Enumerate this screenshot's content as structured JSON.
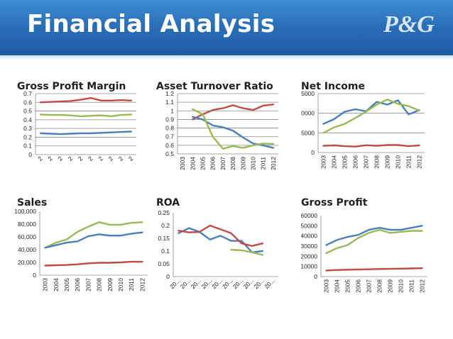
{
  "slide": {
    "title": "Financial Analysis",
    "logo": "P&G"
  },
  "colors": {
    "blue": "#4a7ebb",
    "red": "#be4b48",
    "green": "#98b954",
    "grid": "#868686",
    "axis": "#868686",
    "tick_text": "#1f1f1f"
  },
  "chart_data": [
    {
      "id": "gpm",
      "type": "line",
      "title": "Gross Profit Margin",
      "categories": [
        "2",
        "2",
        "2",
        "2",
        "2",
        "2",
        "2",
        "2",
        "2",
        "2"
      ],
      "y_ticks": [
        "0",
        "0.1",
        "0.2",
        "0.3",
        "0.4",
        "0.5",
        "0.6",
        "0.7"
      ],
      "ylim": [
        0,
        0.7
      ],
      "grid": true,
      "series": [
        {
          "color": "red",
          "values": [
            0.6,
            0.605,
            0.61,
            0.615,
            0.63,
            0.65,
            0.62,
            0.62,
            0.625,
            0.62
          ]
        },
        {
          "color": "green",
          "values": [
            0.46,
            0.455,
            0.455,
            0.45,
            0.44,
            0.445,
            0.45,
            0.44,
            0.455,
            0.46
          ]
        },
        {
          "color": "blue",
          "values": [
            0.245,
            0.24,
            0.235,
            0.24,
            0.245,
            0.245,
            0.25,
            0.255,
            0.26,
            0.265
          ]
        }
      ]
    },
    {
      "id": "atr",
      "type": "line",
      "title": "Asset Turnover Ratio",
      "categories": [
        "2003",
        "2004",
        "2005",
        "2006",
        "2007",
        "2008",
        "2009",
        "2010",
        "2011",
        "2012"
      ],
      "y_ticks": [
        "0.5",
        "0.6",
        "0.7",
        "0.8",
        "0.9",
        "1",
        "1.1",
        "1.2"
      ],
      "ylim": [
        0.5,
        1.2
      ],
      "grid": true,
      "series": [
        {
          "color": "red",
          "values": [
            null,
            0.9,
            0.96,
            1.01,
            1.03,
            1.065,
            1.03,
            1.01,
            1.06,
            1.075
          ]
        },
        {
          "color": "blue",
          "values": [
            null,
            0.93,
            0.9,
            0.83,
            0.81,
            0.77,
            0.69,
            0.62,
            0.6,
            0.57
          ]
        },
        {
          "color": "green",
          "values": [
            null,
            1.02,
            0.96,
            0.7,
            0.56,
            0.59,
            0.57,
            0.6,
            0.62,
            0.615
          ]
        }
      ]
    },
    {
      "id": "ni",
      "type": "line",
      "title": "Net Income",
      "categories": [
        "2003",
        "2004",
        "2005",
        "2006",
        "2007",
        "2008",
        "2009",
        "2010",
        "2011",
        "2012"
      ],
      "y_ticks": [
        "0",
        "5000",
        "10000",
        "15000"
      ],
      "ylim": [
        0,
        15000
      ],
      "grid": true,
      "series": [
        {
          "color": "blue",
          "values": [
            7300,
            8500,
            10400,
            11000,
            10500,
            12900,
            12200,
            13300,
            9700,
            10800
          ]
        },
        {
          "color": "green",
          "values": [
            5000,
            6400,
            7300,
            8800,
            10400,
            12200,
            13500,
            12400,
            11800,
            10700
          ]
        },
        {
          "color": "red",
          "values": [
            1700,
            1800,
            1600,
            1500,
            1850,
            1700,
            1900,
            1900,
            1600,
            1800
          ]
        }
      ]
    },
    {
      "id": "sales",
      "type": "line",
      "title": "Sales",
      "categories": [
        "2003",
        "2004",
        "2005",
        "2006",
        "2007",
        "2008",
        "2009",
        "2010",
        "2011",
        "2012"
      ],
      "y_ticks": [
        "0",
        "20,000",
        "40,000",
        "60,000",
        "80,000",
        "100,000"
      ],
      "ylim": [
        0,
        100000
      ],
      "grid": false,
      "series": [
        {
          "color": "green",
          "values": [
            43000,
            51000,
            56000,
            68000,
            76000,
            83000,
            79000,
            79000,
            82000,
            83000
          ]
        },
        {
          "color": "blue",
          "values": [
            43000,
            47000,
            51000,
            53000,
            61000,
            64000,
            62000,
            62000,
            65000,
            67000
          ]
        },
        {
          "color": "red",
          "values": [
            15000,
            15500,
            16000,
            17000,
            18500,
            19500,
            19500,
            20000,
            21000,
            21000
          ]
        }
      ]
    },
    {
      "id": "roa",
      "type": "line",
      "title": "ROA",
      "categories": [
        "20...",
        "20...",
        "20...",
        "20...",
        "20...",
        "20...",
        "20...",
        "20...",
        "20...",
        "20..."
      ],
      "y_ticks": [
        "0",
        "0.05",
        "0.1",
        "0.15",
        "0.2",
        "0.25"
      ],
      "ylim": [
        0,
        0.25
      ],
      "grid": false,
      "series": [
        {
          "color": "blue",
          "values": [
            0.17,
            0.19,
            0.175,
            0.145,
            0.16,
            0.14,
            0.14,
            0.095,
            0.1,
            null
          ]
        },
        {
          "color": "red",
          "values": [
            0.18,
            0.173,
            0.175,
            0.2,
            0.185,
            0.17,
            0.13,
            0.12,
            0.13,
            null
          ]
        },
        {
          "color": "green",
          "values": [
            null,
            null,
            null,
            null,
            null,
            0.105,
            0.103,
            0.095,
            0.085,
            null
          ]
        }
      ]
    },
    {
      "id": "gp",
      "type": "line",
      "title": "Gross Profit",
      "categories": [
        "2003",
        "2004",
        "2005",
        "2006",
        "2007",
        "2008",
        "2009",
        "2010",
        "2011",
        "2012"
      ],
      "y_ticks": [
        "0",
        "10000",
        "20000",
        "30000",
        "40000",
        "50000",
        "60000"
      ],
      "ylim": [
        0,
        60000
      ],
      "grid": false,
      "series": [
        {
          "color": "blue",
          "values": [
            31000,
            36000,
            39000,
            41000,
            46000,
            48000,
            46000,
            46000,
            48000,
            50000
          ]
        },
        {
          "color": "green",
          "values": [
            23000,
            28000,
            31000,
            38000,
            43000,
            46000,
            43000,
            44000,
            45000,
            45000
          ]
        },
        {
          "color": "red",
          "values": [
            6000,
            6500,
            6800,
            7000,
            7200,
            7500,
            7600,
            7800,
            8000,
            8200
          ]
        }
      ]
    }
  ]
}
